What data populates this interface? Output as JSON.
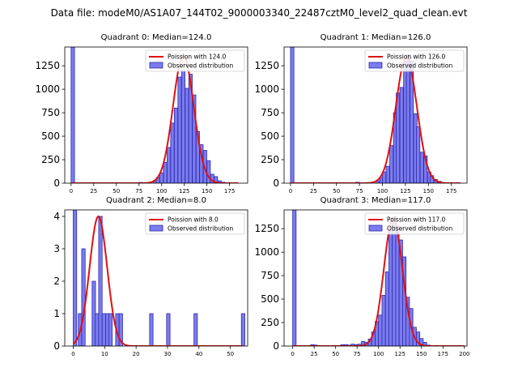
{
  "figure": {
    "title": "Data file: modeM0/AS1A07_144T02_9000003340_22487cztM0_level2_quad_clean.evt"
  },
  "colors": {
    "bar_fill": "#7b7bed",
    "bar_edge": "#2b2bb0",
    "curve": "#e01010"
  },
  "chart_data": [
    {
      "type": "bar",
      "title": "Quadrant 0: Median=124.0",
      "xlim": [
        -7,
        195
      ],
      "ylim": [
        0,
        1450
      ],
      "xticks": [
        0,
        25,
        50,
        75,
        100,
        125,
        150,
        175
      ],
      "yticks": [
        0,
        250,
        500,
        750,
        1000,
        1250
      ],
      "legend": [
        "Poission with 124.0",
        "Observed distribution"
      ],
      "legend_loc": "upper right",
      "bin_width": 3.8,
      "bars": [
        [
          0,
          1450
        ],
        [
          75,
          8
        ],
        [
          79,
          5
        ],
        [
          91,
          30
        ],
        [
          94,
          60
        ],
        [
          98,
          110
        ],
        [
          102,
          220
        ],
        [
          106,
          380
        ],
        [
          110,
          640
        ],
        [
          114,
          800
        ],
        [
          118,
          1130
        ],
        [
          122,
          1200
        ],
        [
          126,
          1010
        ],
        [
          130,
          1160
        ],
        [
          134,
          940
        ],
        [
          138,
          550
        ],
        [
          142,
          410
        ],
        [
          146,
          350
        ],
        [
          150,
          240
        ],
        [
          154,
          95
        ],
        [
          158,
          70
        ],
        [
          162,
          25
        ],
        [
          166,
          10
        ],
        [
          170,
          5
        ]
      ],
      "curve": {
        "mean": 124,
        "sigma": 11.4,
        "peak": 1360,
        "x_range": [
          0,
          185
        ]
      }
    },
    {
      "type": "bar",
      "title": "Quadrant 1: Median=126.0",
      "xlim": [
        -7,
        192
      ],
      "ylim": [
        0,
        1450
      ],
      "xticks": [
        0,
        25,
        50,
        75,
        100,
        125,
        150,
        175
      ],
      "yticks": [
        0,
        250,
        500,
        750,
        1000,
        1250
      ],
      "legend": [
        "Poission with 126.0",
        "Observed distribution"
      ],
      "legend_loc": "upper right",
      "bin_width": 3.7,
      "bars": [
        [
          0,
          1450
        ],
        [
          71,
          10
        ],
        [
          93,
          25
        ],
        [
          97,
          60
        ],
        [
          100,
          120
        ],
        [
          104,
          180
        ],
        [
          108,
          400
        ],
        [
          112,
          750
        ],
        [
          115,
          960
        ],
        [
          119,
          1020
        ],
        [
          123,
          1300
        ],
        [
          126,
          1370
        ],
        [
          130,
          1300
        ],
        [
          134,
          740
        ],
        [
          137,
          600
        ],
        [
          141,
          330
        ],
        [
          145,
          290
        ],
        [
          149,
          120
        ],
        [
          152,
          80
        ],
        [
          156,
          40
        ],
        [
          160,
          20
        ],
        [
          163,
          8
        ],
        [
          167,
          4
        ]
      ],
      "curve": {
        "mean": 126,
        "sigma": 11.5,
        "peak": 1340,
        "x_range": [
          0,
          185
        ]
      }
    },
    {
      "type": "bar",
      "title": "Quadrant 2: Median=8.0",
      "xlim": [
        -2.7,
        55.5
      ],
      "ylim": [
        0,
        4.2
      ],
      "xticks": [
        0,
        10,
        20,
        30,
        40,
        50
      ],
      "yticks": [
        0,
        1,
        2,
        3,
        4
      ],
      "legend": [
        "Poission with 8.0",
        "Observed distribution"
      ],
      "legend_loc": "upper right",
      "bin_width": 1.1,
      "bars": [
        [
          0,
          4.2
        ],
        [
          1.6,
          1
        ],
        [
          2.7,
          3
        ],
        [
          6,
          2
        ],
        [
          7,
          1
        ],
        [
          8.1,
          4
        ],
        [
          9.2,
          1
        ],
        [
          10.3,
          1
        ],
        [
          11.3,
          1
        ],
        [
          13.5,
          1
        ],
        [
          14.6,
          1
        ],
        [
          24.3,
          1
        ],
        [
          29.7,
          1
        ],
        [
          38.4,
          1
        ],
        [
          53.5,
          1
        ]
      ],
      "curve": {
        "mean": 8,
        "sigma": 2.8,
        "peak": 4.0,
        "x_range": [
          0,
          54
        ]
      }
    },
    {
      "type": "bar",
      "title": "Quadrant 3: Median=117.0",
      "xlim": [
        -10,
        203
      ],
      "ylim": [
        0,
        1450
      ],
      "xticks": [
        0,
        25,
        50,
        75,
        100,
        125,
        150,
        175,
        200
      ],
      "yticks": [
        0,
        250,
        500,
        750,
        1000,
        1250
      ],
      "legend": [
        "Poission with 117.0",
        "Observed distribution"
      ],
      "legend_loc": "upper right",
      "bin_width": 4.0,
      "bars": [
        [
          0,
          1450
        ],
        [
          21,
          15
        ],
        [
          25,
          10
        ],
        [
          29,
          5
        ],
        [
          33,
          5
        ],
        [
          48,
          5
        ],
        [
          52,
          5
        ],
        [
          56,
          15
        ],
        [
          60,
          15
        ],
        [
          64,
          10
        ],
        [
          68,
          20
        ],
        [
          72,
          15
        ],
        [
          76,
          20
        ],
        [
          80,
          50
        ],
        [
          84,
          40
        ],
        [
          88,
          75
        ],
        [
          92,
          150
        ],
        [
          96,
          260
        ],
        [
          100,
          330
        ],
        [
          104,
          540
        ],
        [
          108,
          790
        ],
        [
          112,
          1230
        ],
        [
          116,
          1370
        ],
        [
          120,
          1280
        ],
        [
          124,
          1130
        ],
        [
          128,
          950
        ],
        [
          132,
          520
        ],
        [
          136,
          400
        ],
        [
          140,
          200
        ],
        [
          144,
          150
        ],
        [
          148,
          80
        ],
        [
          152,
          40
        ],
        [
          156,
          10
        ],
        [
          164,
          5
        ]
      ],
      "curve": {
        "mean": 117,
        "sigma": 10.8,
        "peak": 1360,
        "x_range": [
          0,
          200
        ]
      }
    }
  ]
}
